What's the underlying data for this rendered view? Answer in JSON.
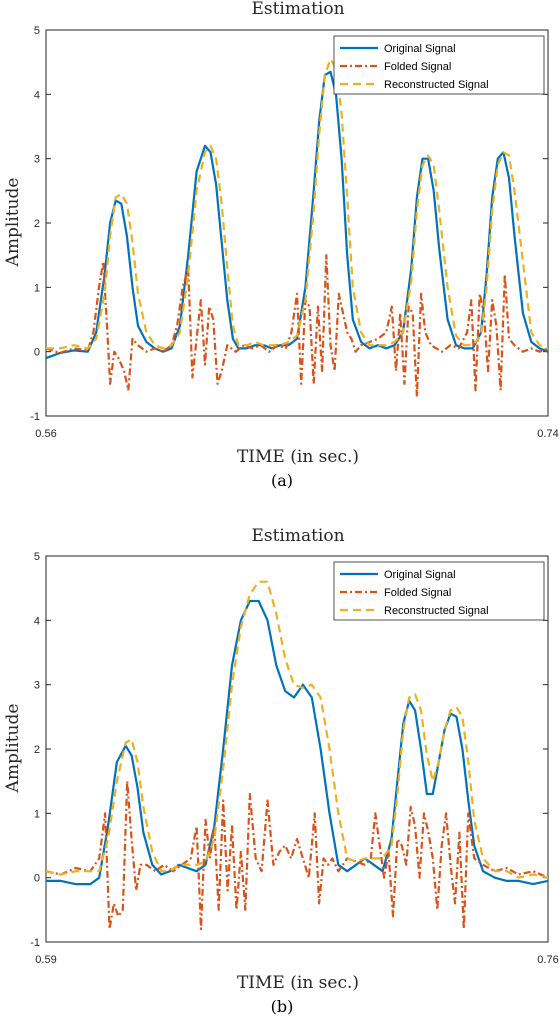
{
  "chart_data": [
    {
      "type": "line",
      "title": "Estimation",
      "xlabel": "TIME (in sec.)",
      "ylabel": "Amplitude",
      "caption": "(a)",
      "xlim": [
        0.56,
        0.74
      ],
      "ylim": [
        -1,
        5
      ],
      "xticks": [
        "0.56",
        "0.74"
      ],
      "yticks": [
        "-1",
        "0",
        "1",
        "2",
        "3",
        "4",
        "5"
      ],
      "legend_position": "top-right",
      "series": [
        {
          "name": "Original Signal",
          "color": "#0072BD",
          "style": "solid",
          "x": [
            0.56,
            0.565,
            0.57,
            0.575,
            0.578,
            0.581,
            0.583,
            0.585,
            0.587,
            0.589,
            0.591,
            0.593,
            0.596,
            0.599,
            0.602,
            0.605,
            0.608,
            0.611,
            0.614,
            0.617,
            0.619,
            0.621,
            0.623,
            0.625,
            0.627,
            0.629,
            0.632,
            0.635,
            0.638,
            0.641,
            0.644,
            0.647,
            0.65,
            0.653,
            0.656,
            0.658,
            0.66,
            0.662,
            0.664,
            0.666,
            0.668,
            0.67,
            0.673,
            0.676,
            0.679,
            0.682,
            0.685,
            0.688,
            0.691,
            0.693,
            0.695,
            0.697,
            0.699,
            0.701,
            0.704,
            0.707,
            0.71,
            0.713,
            0.716,
            0.718,
            0.72,
            0.722,
            0.724,
            0.726,
            0.728,
            0.731,
            0.734,
            0.737,
            0.74
          ],
          "y": [
            -0.1,
            -0.02,
            0.02,
            0.0,
            0.3,
            1.2,
            2.0,
            2.35,
            2.3,
            1.8,
            1.0,
            0.4,
            0.15,
            0.05,
            0.0,
            0.05,
            0.4,
            1.5,
            2.8,
            3.2,
            3.1,
            2.6,
            1.7,
            0.8,
            0.2,
            0.05,
            0.05,
            0.1,
            0.1,
            0.05,
            0.1,
            0.1,
            0.2,
            1.0,
            2.5,
            3.6,
            4.3,
            4.35,
            4.0,
            3.0,
            1.5,
            0.5,
            0.15,
            0.05,
            0.1,
            0.05,
            0.1,
            0.3,
            1.3,
            2.4,
            3.0,
            3.0,
            2.5,
            1.6,
            0.5,
            0.1,
            0.05,
            0.05,
            0.3,
            1.2,
            2.4,
            3.0,
            3.1,
            2.7,
            1.8,
            0.6,
            0.15,
            0.05,
            0.0
          ]
        },
        {
          "name": "Folded Signal",
          "color": "#D95319",
          "style": "dashdot",
          "x": [
            0.56,
            0.565,
            0.57,
            0.575,
            0.577,
            0.579,
            0.5805,
            0.582,
            0.583,
            0.5845,
            0.586,
            0.588,
            0.5895,
            0.591,
            0.593,
            0.596,
            0.599,
            0.602,
            0.605,
            0.607,
            0.609,
            0.611,
            0.6125,
            0.614,
            0.6155,
            0.617,
            0.6185,
            0.62,
            0.6215,
            0.623,
            0.625,
            0.628,
            0.631,
            0.634,
            0.637,
            0.64,
            0.643,
            0.646,
            0.648,
            0.65,
            0.6515,
            0.653,
            0.6545,
            0.656,
            0.6575,
            0.659,
            0.6605,
            0.662,
            0.6635,
            0.665,
            0.6665,
            0.668,
            0.6695,
            0.671,
            0.673,
            0.676,
            0.679,
            0.682,
            0.684,
            0.6855,
            0.687,
            0.6885,
            0.69,
            0.6915,
            0.693,
            0.6945,
            0.696,
            0.698,
            0.7,
            0.702,
            0.705,
            0.708,
            0.711,
            0.7125,
            0.714,
            0.7155,
            0.717,
            0.7185,
            0.72,
            0.7215,
            0.723,
            0.7245,
            0.726,
            0.728,
            0.731,
            0.734,
            0.737,
            0.74
          ],
          "y": [
            0.05,
            -0.02,
            0.05,
            0.02,
            0.3,
            1.0,
            1.4,
            0.3,
            -0.5,
            0.0,
            -0.1,
            -0.3,
            -0.6,
            0.2,
            0.1,
            0.0,
            0.05,
            0.0,
            0.1,
            0.4,
            1.0,
            1.3,
            -0.4,
            0.2,
            0.8,
            -0.2,
            0.7,
            0.5,
            -0.5,
            -0.3,
            0.1,
            0.0,
            0.1,
            0.05,
            0.1,
            0.0,
            0.1,
            0.05,
            0.3,
            0.9,
            -0.5,
            0.8,
            0.7,
            -0.5,
            0.7,
            -0.3,
            1.5,
            0.1,
            -0.3,
            0.9,
            0.6,
            0.3,
            0.2,
            0.0,
            0.1,
            0.15,
            0.2,
            0.3,
            0.7,
            -0.3,
            0.6,
            -0.5,
            0.7,
            0.6,
            -0.7,
            0.9,
            0.3,
            0.1,
            0.05,
            0.0,
            0.1,
            0.05,
            0.3,
            0.8,
            -0.6,
            0.9,
            0.6,
            -0.3,
            0.8,
            0.4,
            -0.6,
            1.2,
            0.2,
            0.1,
            0.0,
            0.05,
            0.0,
            0.05
          ]
        },
        {
          "name": "Reconstructed Signal",
          "color": "#EDB120",
          "style": "dashed",
          "x": [
            0.56,
            0.565,
            0.57,
            0.575,
            0.578,
            0.581,
            0.583,
            0.585,
            0.587,
            0.589,
            0.591,
            0.593,
            0.596,
            0.599,
            0.602,
            0.605,
            0.608,
            0.611,
            0.614,
            0.617,
            0.619,
            0.621,
            0.623,
            0.625,
            0.627,
            0.629,
            0.632,
            0.635,
            0.638,
            0.641,
            0.644,
            0.647,
            0.65,
            0.653,
            0.656,
            0.658,
            0.66,
            0.662,
            0.664,
            0.666,
            0.668,
            0.67,
            0.673,
            0.676,
            0.679,
            0.682,
            0.685,
            0.688,
            0.691,
            0.693,
            0.695,
            0.697,
            0.699,
            0.701,
            0.704,
            0.707,
            0.71,
            0.713,
            0.716,
            0.718,
            0.72,
            0.722,
            0.724,
            0.726,
            0.728,
            0.731,
            0.734,
            0.737,
            0.74
          ],
          "y": [
            0.05,
            0.05,
            0.1,
            0.05,
            0.2,
            0.9,
            1.8,
            2.4,
            2.45,
            2.3,
            1.7,
            0.9,
            0.3,
            0.1,
            0.05,
            0.1,
            0.3,
            1.2,
            2.5,
            3.1,
            3.2,
            3.0,
            2.3,
            1.3,
            0.4,
            0.1,
            0.1,
            0.15,
            0.1,
            0.1,
            0.1,
            0.15,
            0.25,
            0.8,
            2.2,
            3.4,
            4.3,
            4.55,
            4.4,
            3.7,
            2.4,
            1.0,
            0.3,
            0.1,
            0.1,
            0.1,
            0.15,
            0.3,
            1.1,
            2.2,
            2.9,
            3.05,
            2.9,
            2.2,
            1.0,
            0.25,
            0.1,
            0.1,
            0.25,
            1.0,
            2.2,
            2.9,
            3.1,
            3.05,
            2.5,
            1.4,
            0.3,
            0.1,
            0.05
          ]
        }
      ]
    },
    {
      "type": "line",
      "title": "Estimation",
      "xlabel": "TIME (in sec.)",
      "ylabel": "Amplitude",
      "caption": "(b)",
      "xlim": [
        0.59,
        0.76
      ],
      "ylim": [
        -1,
        5
      ],
      "xticks": [
        "0.59",
        "0.76"
      ],
      "yticks": [
        "-1",
        "0",
        "1",
        "2",
        "3",
        "4",
        "5"
      ],
      "legend_position": "top-right",
      "series": [
        {
          "name": "Original Signal",
          "color": "#0072BD",
          "style": "solid",
          "x": [
            0.59,
            0.595,
            0.6,
            0.605,
            0.608,
            0.611,
            0.614,
            0.617,
            0.619,
            0.621,
            0.623,
            0.626,
            0.629,
            0.632,
            0.635,
            0.638,
            0.641,
            0.644,
            0.647,
            0.65,
            0.653,
            0.656,
            0.659,
            0.662,
            0.665,
            0.668,
            0.671,
            0.674,
            0.677,
            0.68,
            0.683,
            0.686,
            0.689,
            0.692,
            0.695,
            0.698,
            0.701,
            0.704,
            0.707,
            0.709,
            0.711,
            0.713,
            0.715,
            0.717,
            0.719,
            0.721,
            0.723,
            0.725,
            0.727,
            0.729,
            0.731,
            0.733,
            0.735,
            0.738,
            0.742,
            0.746,
            0.75,
            0.755,
            0.76
          ],
          "y": [
            -0.05,
            -0.05,
            -0.1,
            -0.1,
            0.0,
            0.8,
            1.8,
            2.05,
            1.9,
            1.4,
            0.7,
            0.2,
            0.05,
            0.1,
            0.2,
            0.15,
            0.1,
            0.2,
            0.8,
            2.0,
            3.3,
            4.0,
            4.3,
            4.3,
            4.0,
            3.3,
            2.9,
            2.8,
            3.0,
            2.8,
            2.0,
            1.0,
            0.2,
            0.1,
            0.2,
            0.3,
            0.2,
            0.1,
            0.6,
            1.5,
            2.4,
            2.75,
            2.6,
            2.0,
            1.3,
            1.3,
            1.8,
            2.3,
            2.55,
            2.5,
            2.0,
            1.2,
            0.5,
            0.1,
            0.0,
            -0.05,
            -0.05,
            -0.1,
            -0.05
          ]
        },
        {
          "name": "Folded Signal",
          "color": "#D95319",
          "style": "dashdot",
          "x": [
            0.59,
            0.595,
            0.6,
            0.605,
            0.608,
            0.61,
            0.6115,
            0.613,
            0.6145,
            0.616,
            0.6175,
            0.619,
            0.6205,
            0.622,
            0.624,
            0.627,
            0.63,
            0.633,
            0.636,
            0.639,
            0.641,
            0.6425,
            0.644,
            0.6455,
            0.647,
            0.6485,
            0.65,
            0.6515,
            0.653,
            0.6545,
            0.656,
            0.6575,
            0.659,
            0.661,
            0.663,
            0.665,
            0.667,
            0.669,
            0.671,
            0.673,
            0.675,
            0.677,
            0.679,
            0.681,
            0.6825,
            0.684,
            0.6855,
            0.687,
            0.689,
            0.692,
            0.695,
            0.698,
            0.7,
            0.7015,
            0.703,
            0.7045,
            0.706,
            0.7075,
            0.709,
            0.7105,
            0.712,
            0.7135,
            0.715,
            0.7165,
            0.718,
            0.7195,
            0.721,
            0.7225,
            0.724,
            0.7255,
            0.727,
            0.7285,
            0.73,
            0.7315,
            0.733,
            0.735,
            0.738,
            0.742,
            0.746,
            0.75,
            0.755,
            0.76
          ],
          "y": [
            0.1,
            0.05,
            0.15,
            0.1,
            0.3,
            1.0,
            -0.8,
            -0.4,
            -0.6,
            -0.5,
            1.5,
            0.6,
            -0.2,
            0.2,
            0.2,
            0.1,
            0.2,
            0.1,
            0.2,
            0.3,
            0.8,
            -0.8,
            0.9,
            0.3,
            0.8,
            -0.5,
            1.2,
            -0.2,
            0.8,
            -0.5,
            0.4,
            -0.5,
            1.3,
            0.3,
            0.1,
            1.2,
            0.2,
            0.4,
            0.5,
            0.3,
            0.6,
            0.3,
            0.0,
            1.0,
            -0.4,
            0.3,
            0.2,
            0.3,
            0.1,
            0.3,
            0.25,
            0.2,
            0.3,
            1.0,
            0.5,
            0.0,
            0.4,
            -0.6,
            0.6,
            0.5,
            0.2,
            1.1,
            0.8,
            0.0,
            1.0,
            0.7,
            0.3,
            -0.5,
            0.5,
            1.0,
            0.2,
            -0.4,
            0.7,
            -0.8,
            1.0,
            0.3,
            0.2,
            0.1,
            0.15,
            0.05,
            0.1,
            0.0
          ]
        },
        {
          "name": "Reconstructed Signal",
          "color": "#EDB120",
          "style": "dashed",
          "x": [
            0.59,
            0.595,
            0.6,
            0.605,
            0.608,
            0.611,
            0.614,
            0.617,
            0.619,
            0.621,
            0.623,
            0.626,
            0.629,
            0.632,
            0.635,
            0.638,
            0.641,
            0.644,
            0.647,
            0.65,
            0.653,
            0.656,
            0.659,
            0.662,
            0.665,
            0.668,
            0.671,
            0.674,
            0.677,
            0.68,
            0.683,
            0.686,
            0.689,
            0.692,
            0.695,
            0.698,
            0.701,
            0.704,
            0.707,
            0.709,
            0.711,
            0.713,
            0.715,
            0.717,
            0.719,
            0.721,
            0.723,
            0.725,
            0.727,
            0.729,
            0.731,
            0.733,
            0.735,
            0.738,
            0.742,
            0.746,
            0.75,
            0.755,
            0.76
          ],
          "y": [
            0.1,
            0.05,
            0.1,
            0.1,
            0.1,
            0.6,
            1.5,
            2.1,
            2.15,
            1.8,
            1.1,
            0.4,
            0.1,
            0.1,
            0.2,
            0.2,
            0.2,
            0.25,
            0.6,
            1.7,
            3.0,
            3.9,
            4.4,
            4.6,
            4.6,
            4.1,
            3.4,
            3.0,
            2.95,
            3.0,
            2.8,
            2.0,
            1.0,
            0.3,
            0.25,
            0.3,
            0.3,
            0.3,
            0.5,
            1.3,
            2.3,
            2.8,
            2.85,
            2.6,
            1.9,
            1.5,
            1.8,
            2.3,
            2.6,
            2.65,
            2.5,
            1.8,
            0.9,
            0.3,
            0.1,
            0.1,
            0.0,
            0.05,
            0.0
          ]
        }
      ]
    }
  ]
}
